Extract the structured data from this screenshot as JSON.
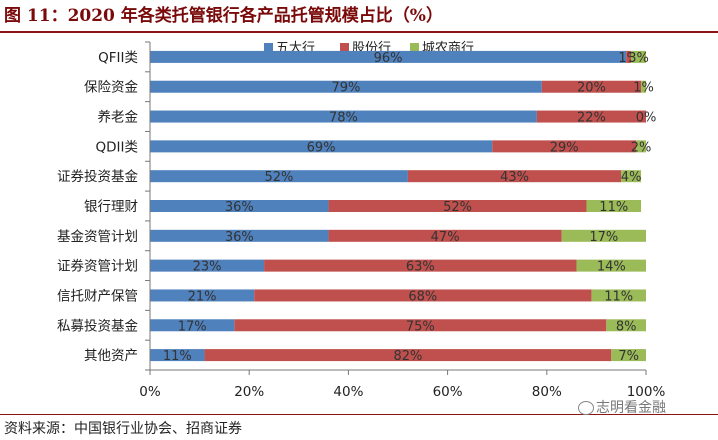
{
  "header": {
    "title": "图 11：2020 年各类托管银行各产品托管规模占比（%）"
  },
  "footer": {
    "source": "资料来源：中国银行业协会、招商证券"
  },
  "watermark": {
    "text": "志明看金融"
  },
  "chart_data": {
    "type": "bar",
    "orientation": "horizontal",
    "stacked": true,
    "title": "",
    "xlabel": "",
    "ylabel": "",
    "xlim": [
      0,
      100
    ],
    "x_ticks": [
      "0%",
      "20%",
      "40%",
      "60%",
      "80%",
      "100%"
    ],
    "legend_position": "top",
    "grid": false,
    "categories": [
      "QFII类",
      "保险资金",
      "养老金",
      "QDII类",
      "证券投资基金",
      "银行理财",
      "基金资管计划",
      "证券资管计划",
      "信托财产保管",
      "私募投资基金",
      "其他资产"
    ],
    "series": [
      {
        "name": "五大行",
        "color": "#4f81bd",
        "values": [
          96,
          79,
          78,
          69,
          52,
          36,
          36,
          23,
          21,
          17,
          11
        ],
        "labels": [
          "96%",
          "79%",
          "78%",
          "69%",
          "52%",
          "36%",
          "36%",
          "23%",
          "21%",
          "17%",
          "11%"
        ]
      },
      {
        "name": "股份行",
        "color": "#c0504d",
        "values": [
          1,
          20,
          22,
          29,
          43,
          52,
          47,
          63,
          68,
          75,
          82
        ],
        "labels": [
          "1%",
          "20%",
          "22%",
          "29%",
          "43%",
          "52%",
          "47%",
          "63%",
          "68%",
          "75%",
          "82%"
        ]
      },
      {
        "name": "城农商行",
        "color": "#9bbb59",
        "values": [
          3,
          1,
          0,
          2,
          4,
          11,
          17,
          14,
          11,
          8,
          7
        ],
        "labels": [
          "3%",
          "1%",
          "0%",
          "2%",
          "4%",
          "11%",
          "17%",
          "14%",
          "11%",
          "8%",
          "7%"
        ]
      }
    ]
  }
}
